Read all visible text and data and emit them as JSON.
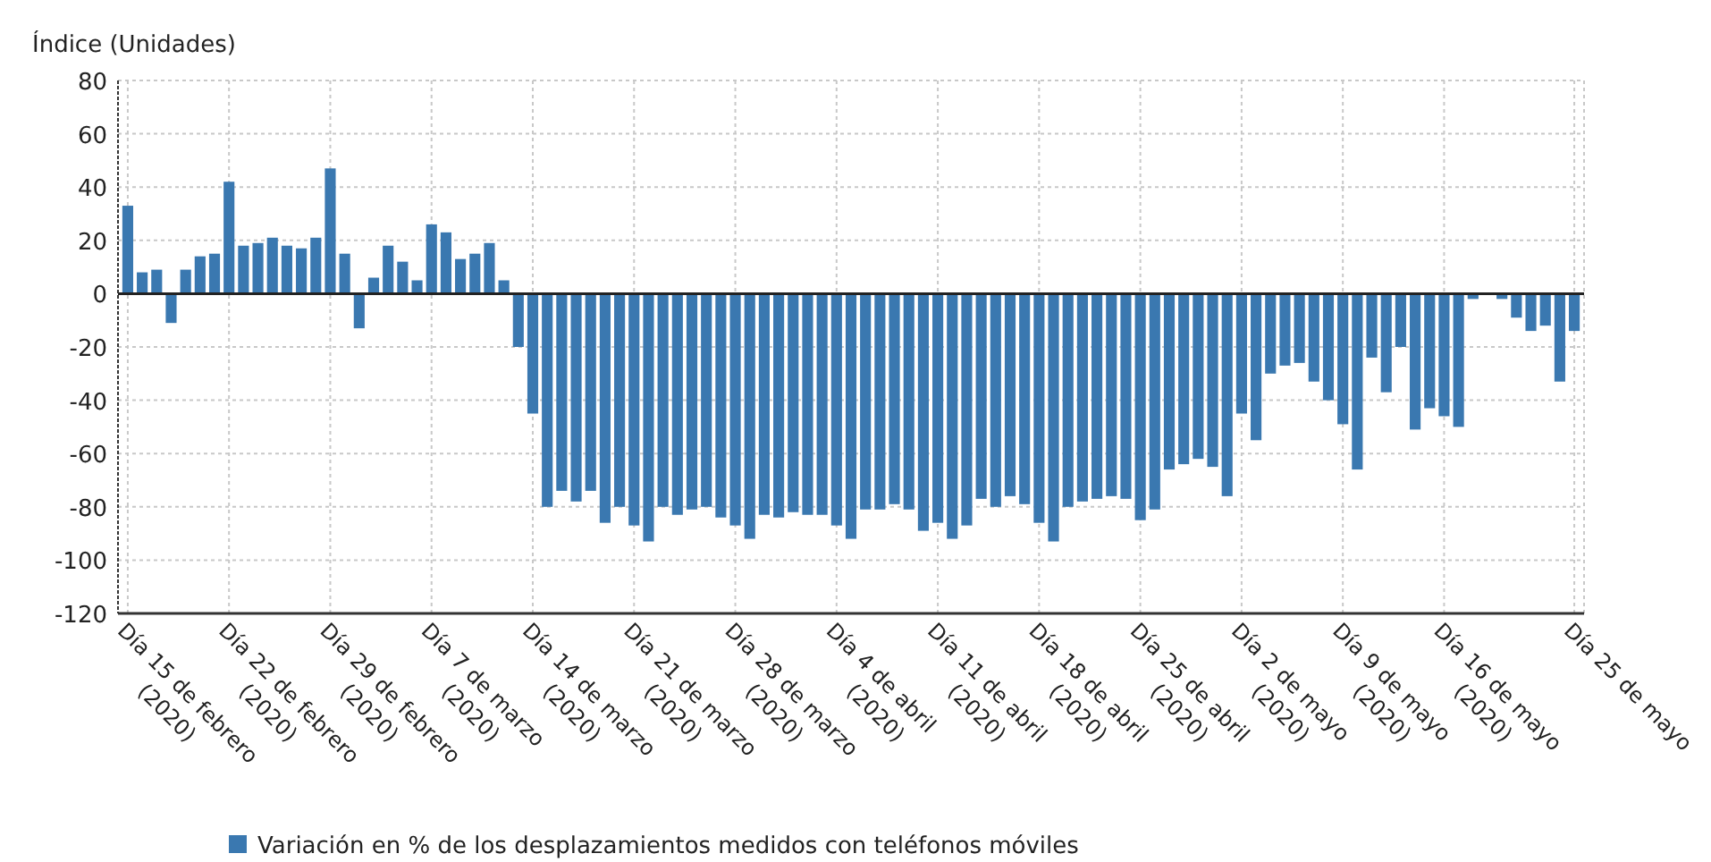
{
  "chart_data": {
    "type": "bar",
    "ylabel": "Índice (Unidades)",
    "categories": [
      "Día 15 de febrero (2020)",
      null,
      null,
      null,
      null,
      null,
      null,
      "Día 22 de febrero (2020)",
      null,
      null,
      null,
      null,
      null,
      null,
      "Día 29 de febrero (2020)",
      null,
      null,
      null,
      null,
      null,
      null,
      "Día 7 de marzo (2020)",
      null,
      null,
      null,
      null,
      null,
      null,
      "Día 14 de marzo (2020)",
      null,
      null,
      null,
      null,
      null,
      null,
      "Día 21 de marzo (2020)",
      null,
      null,
      null,
      null,
      null,
      null,
      "Día 28 de marzo (2020)",
      null,
      null,
      null,
      null,
      null,
      null,
      "Día 4 de abril (2020)",
      null,
      null,
      null,
      null,
      null,
      null,
      "Día 11 de abril (2020)",
      null,
      null,
      null,
      null,
      null,
      null,
      "Día 18 de abril (2020)",
      null,
      null,
      null,
      null,
      null,
      null,
      "Día 25 de abril (2020)",
      null,
      null,
      null,
      null,
      null,
      null,
      "Día 2 de mayo (2020)",
      null,
      null,
      null,
      null,
      null,
      null,
      "Día 9 de mayo (2020)",
      null,
      null,
      null,
      null,
      null,
      null,
      "Día 16 de mayo (2020)",
      null,
      null,
      null,
      null,
      null,
      null,
      null,
      null,
      "Día 25 de mayo"
    ],
    "series": [
      {
        "name": "Variación en % de los desplazamientos medidos con teléfonos móviles",
        "color": "#3a78b0",
        "values": [
          33,
          8,
          9,
          -11,
          9,
          14,
          15,
          42,
          18,
          19,
          21,
          18,
          17,
          21,
          47,
          15,
          -13,
          6,
          18,
          12,
          5,
          26,
          23,
          13,
          15,
          19,
          5,
          -20,
          -45,
          -80,
          -74,
          -78,
          -74,
          -86,
          -80,
          -87,
          -93,
          -80,
          -83,
          -81,
          -80,
          -84,
          -87,
          -92,
          -83,
          -84,
          -82,
          -83,
          -83,
          -87,
          -92,
          -81,
          -81,
          -79,
          -81,
          -89,
          -86,
          -92,
          -87,
          -77,
          -80,
          -76,
          -79,
          -86,
          -93,
          -80,
          -78,
          -77,
          -76,
          -77,
          -85,
          -81,
          -66,
          -64,
          -62,
          -65,
          -76,
          -45,
          -55,
          -30,
          -27,
          -26,
          -33,
          -40,
          -49,
          -66,
          -24,
          -37,
          -20,
          -51,
          -43,
          -46,
          -50,
          -2,
          null,
          -2,
          -9,
          -14,
          -12,
          -33,
          -14
        ]
      }
    ],
    "ylim": [
      -120,
      80
    ],
    "yticks": [
      -120,
      -100,
      -80,
      -60,
      -40,
      -20,
      0,
      20,
      40,
      60,
      80
    ],
    "grid": true,
    "legend": "bottom"
  }
}
